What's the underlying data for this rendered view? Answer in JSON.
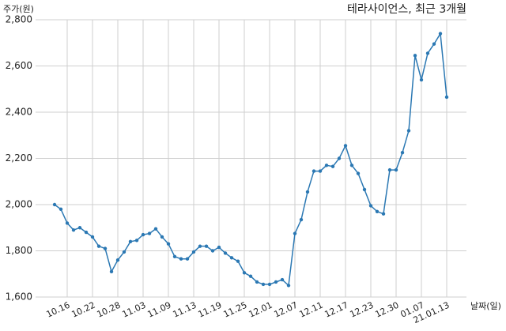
{
  "chart_data": {
    "type": "line",
    "title": "테라사이언스, 최근 3개월",
    "y_label": "주가(원)",
    "x_label": "날짜(일)",
    "categories": [
      null,
      null,
      "10.16",
      null,
      null,
      null,
      "10.22",
      null,
      null,
      null,
      "10.28",
      null,
      null,
      null,
      "11.03",
      null,
      null,
      null,
      "11.09",
      null,
      null,
      null,
      "11.13",
      null,
      null,
      null,
      "11.19",
      null,
      null,
      null,
      "11.25",
      null,
      null,
      null,
      "12.01",
      null,
      null,
      null,
      "12.07",
      null,
      null,
      null,
      "12.11",
      null,
      null,
      null,
      "12.17",
      null,
      null,
      null,
      "12.23",
      null,
      null,
      null,
      "12.30",
      null,
      null,
      null,
      "01.07",
      null,
      null,
      null,
      "21.01.13"
    ],
    "series": [
      {
        "name": "테라사이언스",
        "color": "#2b78b3",
        "values": [
          2000,
          1980,
          1920,
          1890,
          1900,
          1880,
          1860,
          1820,
          1810,
          1710,
          1760,
          1795,
          1840,
          1845,
          1870,
          1875,
          1895,
          1860,
          1830,
          1775,
          1765,
          1765,
          1795,
          1820,
          1820,
          1800,
          1815,
          1790,
          1770,
          1755,
          1705,
          1690,
          1665,
          1655,
          1655,
          1665,
          1675,
          1650,
          1875,
          1935,
          2055,
          2145,
          2145,
          2170,
          2165,
          2200,
          2255,
          2170,
          2135,
          2065,
          1995,
          1970,
          1960,
          2150,
          2150,
          2225,
          2320,
          2645,
          2540,
          2655,
          2695,
          2740,
          2465
        ]
      }
    ],
    "ylim": [
      1600,
      2800
    ],
    "yticks": [
      {
        "value": 1600,
        "label": "1,600"
      },
      {
        "value": 1800,
        "label": "1,800"
      },
      {
        "value": 2000,
        "label": "2,000"
      },
      {
        "value": 2200,
        "label": "2,200"
      },
      {
        "value": 2400,
        "label": "2,400"
      },
      {
        "value": 2600,
        "label": "2,600"
      },
      {
        "value": 2800,
        "label": "2,800"
      }
    ],
    "grid": true
  }
}
